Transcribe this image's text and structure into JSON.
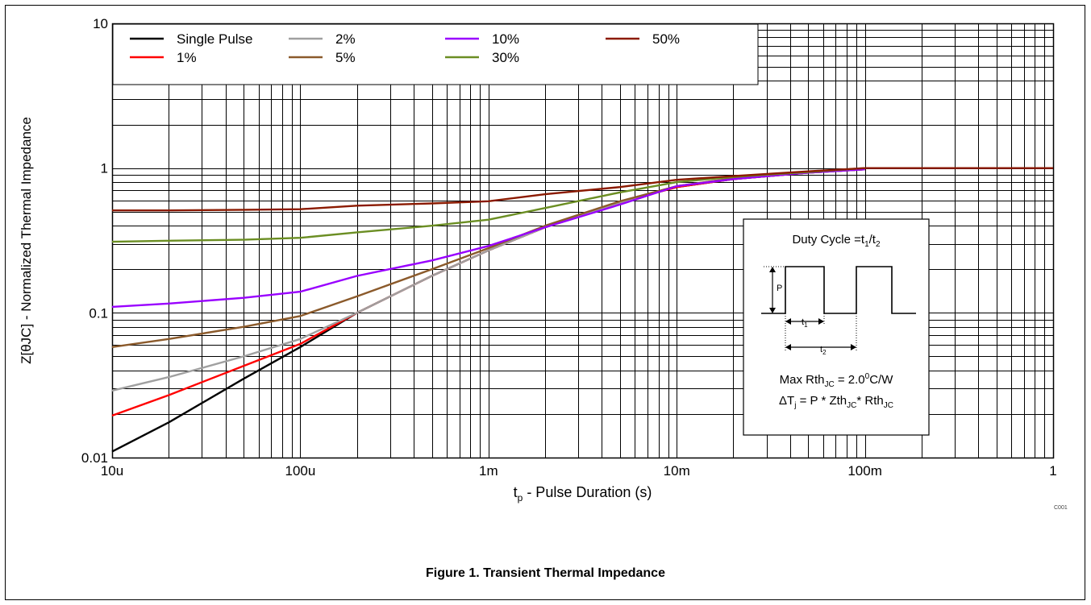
{
  "chart_data": {
    "type": "line",
    "x_scale": "log",
    "y_scale": "log",
    "xlim": [
      1e-05,
      1
    ],
    "ylim": [
      0.01,
      10
    ],
    "x_ticks": [
      {
        "value": 1e-05,
        "label": "10u"
      },
      {
        "value": 0.0001,
        "label": "100u"
      },
      {
        "value": 0.001,
        "label": "1m"
      },
      {
        "value": 0.01,
        "label": "10m"
      },
      {
        "value": 0.1,
        "label": "100m"
      },
      {
        "value": 1,
        "label": "1"
      }
    ],
    "y_ticks": [
      {
        "value": 0.01,
        "label": "0.01"
      },
      {
        "value": 0.1,
        "label": "0.1"
      },
      {
        "value": 1,
        "label": "1"
      },
      {
        "value": 10,
        "label": "10"
      }
    ],
    "xlabel": {
      "main": "t",
      "sub": "p",
      "rest": " - Pulse Duration (s)"
    },
    "ylabel": "Z[θJC] - Normalized Thermal Impedance",
    "grid": true,
    "legend_placement": "top-left",
    "series": [
      {
        "name": "Single Pulse",
        "color": "#000000",
        "points": [
          [
            1e-05,
            0.011
          ],
          [
            2e-05,
            0.0175
          ],
          [
            5e-05,
            0.035
          ],
          [
            0.0001,
            0.058
          ],
          [
            0.0002,
            0.1
          ],
          [
            0.0005,
            0.18
          ],
          [
            0.001,
            0.27
          ],
          [
            0.002,
            0.39
          ],
          [
            0.005,
            0.58
          ],
          [
            0.01,
            0.74
          ],
          [
            0.02,
            0.84
          ],
          [
            0.05,
            0.93
          ],
          [
            0.1,
            0.98
          ]
        ]
      },
      {
        "name": "1%",
        "color": "#ff0000",
        "points": [
          [
            1e-05,
            0.0195
          ],
          [
            2e-05,
            0.027
          ],
          [
            5e-05,
            0.043
          ],
          [
            0.0001,
            0.061
          ],
          [
            0.0002,
            0.1
          ],
          [
            0.0005,
            0.18
          ],
          [
            0.001,
            0.27
          ],
          [
            0.002,
            0.39
          ],
          [
            0.005,
            0.58
          ],
          [
            0.01,
            0.74
          ],
          [
            0.02,
            0.84
          ],
          [
            0.05,
            0.93
          ],
          [
            0.1,
            0.98
          ]
        ]
      },
      {
        "name": "2%",
        "color": "#a0a0a0",
        "points": [
          [
            1e-05,
            0.029
          ],
          [
            2e-05,
            0.036
          ],
          [
            5e-05,
            0.05
          ],
          [
            0.0001,
            0.066
          ],
          [
            0.0002,
            0.1
          ],
          [
            0.0005,
            0.18
          ],
          [
            0.001,
            0.27
          ],
          [
            0.002,
            0.39
          ],
          [
            0.005,
            0.58
          ],
          [
            0.01,
            0.75
          ],
          [
            0.02,
            0.85
          ],
          [
            0.05,
            0.93
          ],
          [
            0.1,
            0.98
          ]
        ]
      },
      {
        "name": "5%",
        "color": "#8b5a2b",
        "points": [
          [
            1e-05,
            0.058
          ],
          [
            2e-05,
            0.066
          ],
          [
            5e-05,
            0.08
          ],
          [
            0.0001,
            0.095
          ],
          [
            0.0002,
            0.13
          ],
          [
            0.0005,
            0.2
          ],
          [
            0.001,
            0.28
          ],
          [
            0.002,
            0.4
          ],
          [
            0.005,
            0.59
          ],
          [
            0.01,
            0.75
          ],
          [
            0.02,
            0.85
          ],
          [
            0.05,
            0.93
          ],
          [
            0.1,
            0.98
          ]
        ]
      },
      {
        "name": "10%",
        "color": "#9900ff",
        "points": [
          [
            1e-05,
            0.11
          ],
          [
            2e-05,
            0.116
          ],
          [
            5e-05,
            0.127
          ],
          [
            0.0001,
            0.14
          ],
          [
            0.0002,
            0.18
          ],
          [
            0.0005,
            0.23
          ],
          [
            0.001,
            0.29
          ],
          [
            0.002,
            0.39
          ],
          [
            0.005,
            0.56
          ],
          [
            0.01,
            0.75
          ],
          [
            0.02,
            0.84
          ],
          [
            0.05,
            0.93
          ],
          [
            0.1,
            0.98
          ]
        ]
      },
      {
        "name": "30%",
        "color": "#6b8e23",
        "points": [
          [
            1e-05,
            0.31
          ],
          [
            2e-05,
            0.315
          ],
          [
            5e-05,
            0.32
          ],
          [
            0.0001,
            0.33
          ],
          [
            0.0002,
            0.36
          ],
          [
            0.0005,
            0.4
          ],
          [
            0.001,
            0.44
          ],
          [
            0.002,
            0.53
          ],
          [
            0.005,
            0.68
          ],
          [
            0.01,
            0.8
          ],
          [
            0.02,
            0.87
          ],
          [
            0.05,
            0.94
          ],
          [
            0.1,
            1.0
          ]
        ]
      },
      {
        "name": "50%",
        "color": "#8b1a00",
        "points": [
          [
            1e-05,
            0.51
          ],
          [
            2e-05,
            0.51
          ],
          [
            5e-05,
            0.515
          ],
          [
            0.0001,
            0.52
          ],
          [
            0.0002,
            0.55
          ],
          [
            0.0005,
            0.57
          ],
          [
            0.001,
            0.59
          ],
          [
            0.002,
            0.66
          ],
          [
            0.005,
            0.74
          ],
          [
            0.01,
            0.83
          ],
          [
            0.02,
            0.88
          ],
          [
            0.05,
            0.95
          ],
          [
            0.1,
            1.0
          ],
          [
            0.2,
            1.0
          ],
          [
            1,
            1.0
          ]
        ]
      }
    ],
    "inset": {
      "title_main": "Duty Cycle =t",
      "title_sub1": "1",
      "title_slash": "/t",
      "title_sub2": "2",
      "p_label": "P",
      "t1_main": "t",
      "t1_sub": "1",
      "t2_main": "t",
      "t2_sub": "2",
      "formula1_pre": "Max Rth",
      "formula1_sub": "JC",
      "formula1_mid": " = 2.0",
      "formula1_sup": "0",
      "formula1_post": "C/W",
      "formula2_pre": "ΔT",
      "formula2_sub1": "j",
      "formula2_mid1": " = P * Zth",
      "formula2_sub2": "JC",
      "formula2_mid2": "* Rth",
      "formula2_sub3": "JC"
    }
  },
  "caption": "Figure 1.  Transient Thermal Impedance",
  "corner_code": "C001"
}
